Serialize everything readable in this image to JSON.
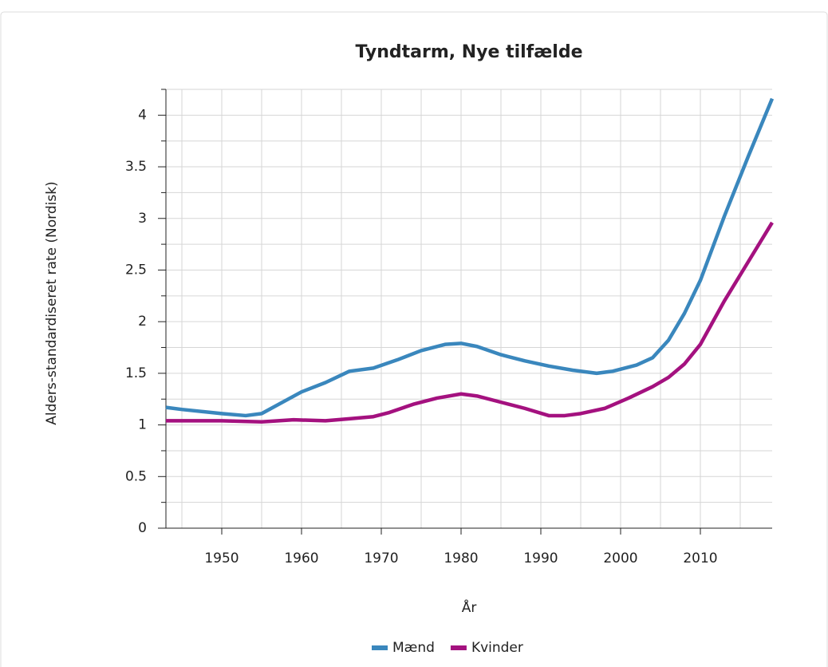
{
  "chart_data": {
    "type": "line",
    "title": "Tyndtarm, Nye tilfælde",
    "x_label": "År",
    "y_label": "Alders-standardiseret rate (Nordisk)",
    "xlim": [
      1943,
      2019
    ],
    "xticks": [
      1950,
      1960,
      1970,
      1980,
      1990,
      2000,
      2010
    ],
    "ylim": [
      0,
      4.25
    ],
    "yticks": [
      0,
      0.5,
      1,
      1.5,
      2,
      2.5,
      3,
      3.5,
      4
    ],
    "grid": true,
    "legend": "bottom",
    "series": [
      {
        "name": "Mænd",
        "color": "#3a87bd",
        "x": [
          1943,
          1945,
          1950,
          1953,
          1955,
          1960,
          1963,
          1966,
          1969,
          1972,
          1975,
          1978,
          1980,
          1982,
          1985,
          1988,
          1991,
          1994,
          1997,
          1999,
          2002,
          2004,
          2006,
          2008,
          2010,
          2013,
          2016,
          2019
        ],
        "values": [
          1.17,
          1.15,
          1.11,
          1.09,
          1.11,
          1.32,
          1.41,
          1.52,
          1.55,
          1.63,
          1.72,
          1.78,
          1.79,
          1.76,
          1.68,
          1.62,
          1.57,
          1.53,
          1.5,
          1.52,
          1.58,
          1.65,
          1.82,
          2.08,
          2.4,
          3.02,
          3.6,
          4.16
        ]
      },
      {
        "name": "Kvinder",
        "color": "#a4117f",
        "x": [
          1943,
          1950,
          1955,
          1959,
          1963,
          1966,
          1969,
          1971,
          1974,
          1977,
          1980,
          1982,
          1985,
          1988,
          1991,
          1993,
          1995,
          1998,
          2001,
          2004,
          2006,
          2008,
          2010,
          2013,
          2016,
          2019
        ],
        "values": [
          1.04,
          1.04,
          1.03,
          1.05,
          1.04,
          1.06,
          1.08,
          1.12,
          1.2,
          1.26,
          1.3,
          1.28,
          1.22,
          1.16,
          1.09,
          1.09,
          1.11,
          1.16,
          1.26,
          1.37,
          1.46,
          1.59,
          1.78,
          2.2,
          2.58,
          2.96
        ]
      }
    ]
  }
}
